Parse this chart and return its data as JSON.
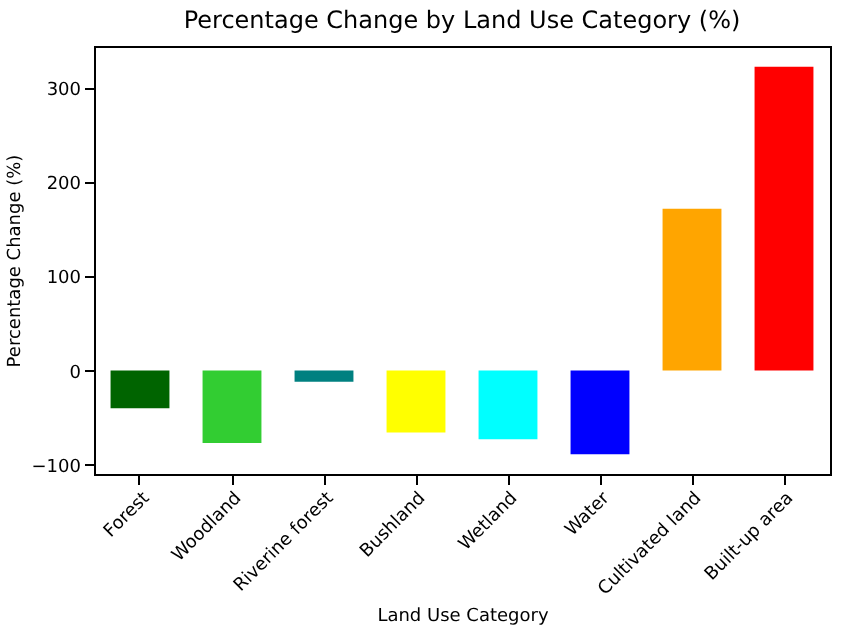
{
  "chart_data": {
    "type": "bar",
    "title": "Percentage Change by Land Use Category (%)",
    "xlabel": "Land Use Category",
    "ylabel": "Percentage Change (%)",
    "categories": [
      "Forest",
      "Woodland",
      "Riverine forest",
      "Bushland",
      "Wetland",
      "Water",
      "Cultivated land",
      "Built-up area"
    ],
    "values": [
      -40,
      -77,
      -12,
      -66,
      -73,
      -89,
      172,
      323
    ],
    "colors": [
      "#006400",
      "#32cd32",
      "#008080",
      "#ffff00",
      "#00ffff",
      "#0000ff",
      "#ffa500",
      "#ff0000"
    ],
    "ylim": [
      -110,
      345
    ],
    "yticks": [
      -100,
      0,
      100,
      200,
      300
    ],
    "grid": false
  }
}
